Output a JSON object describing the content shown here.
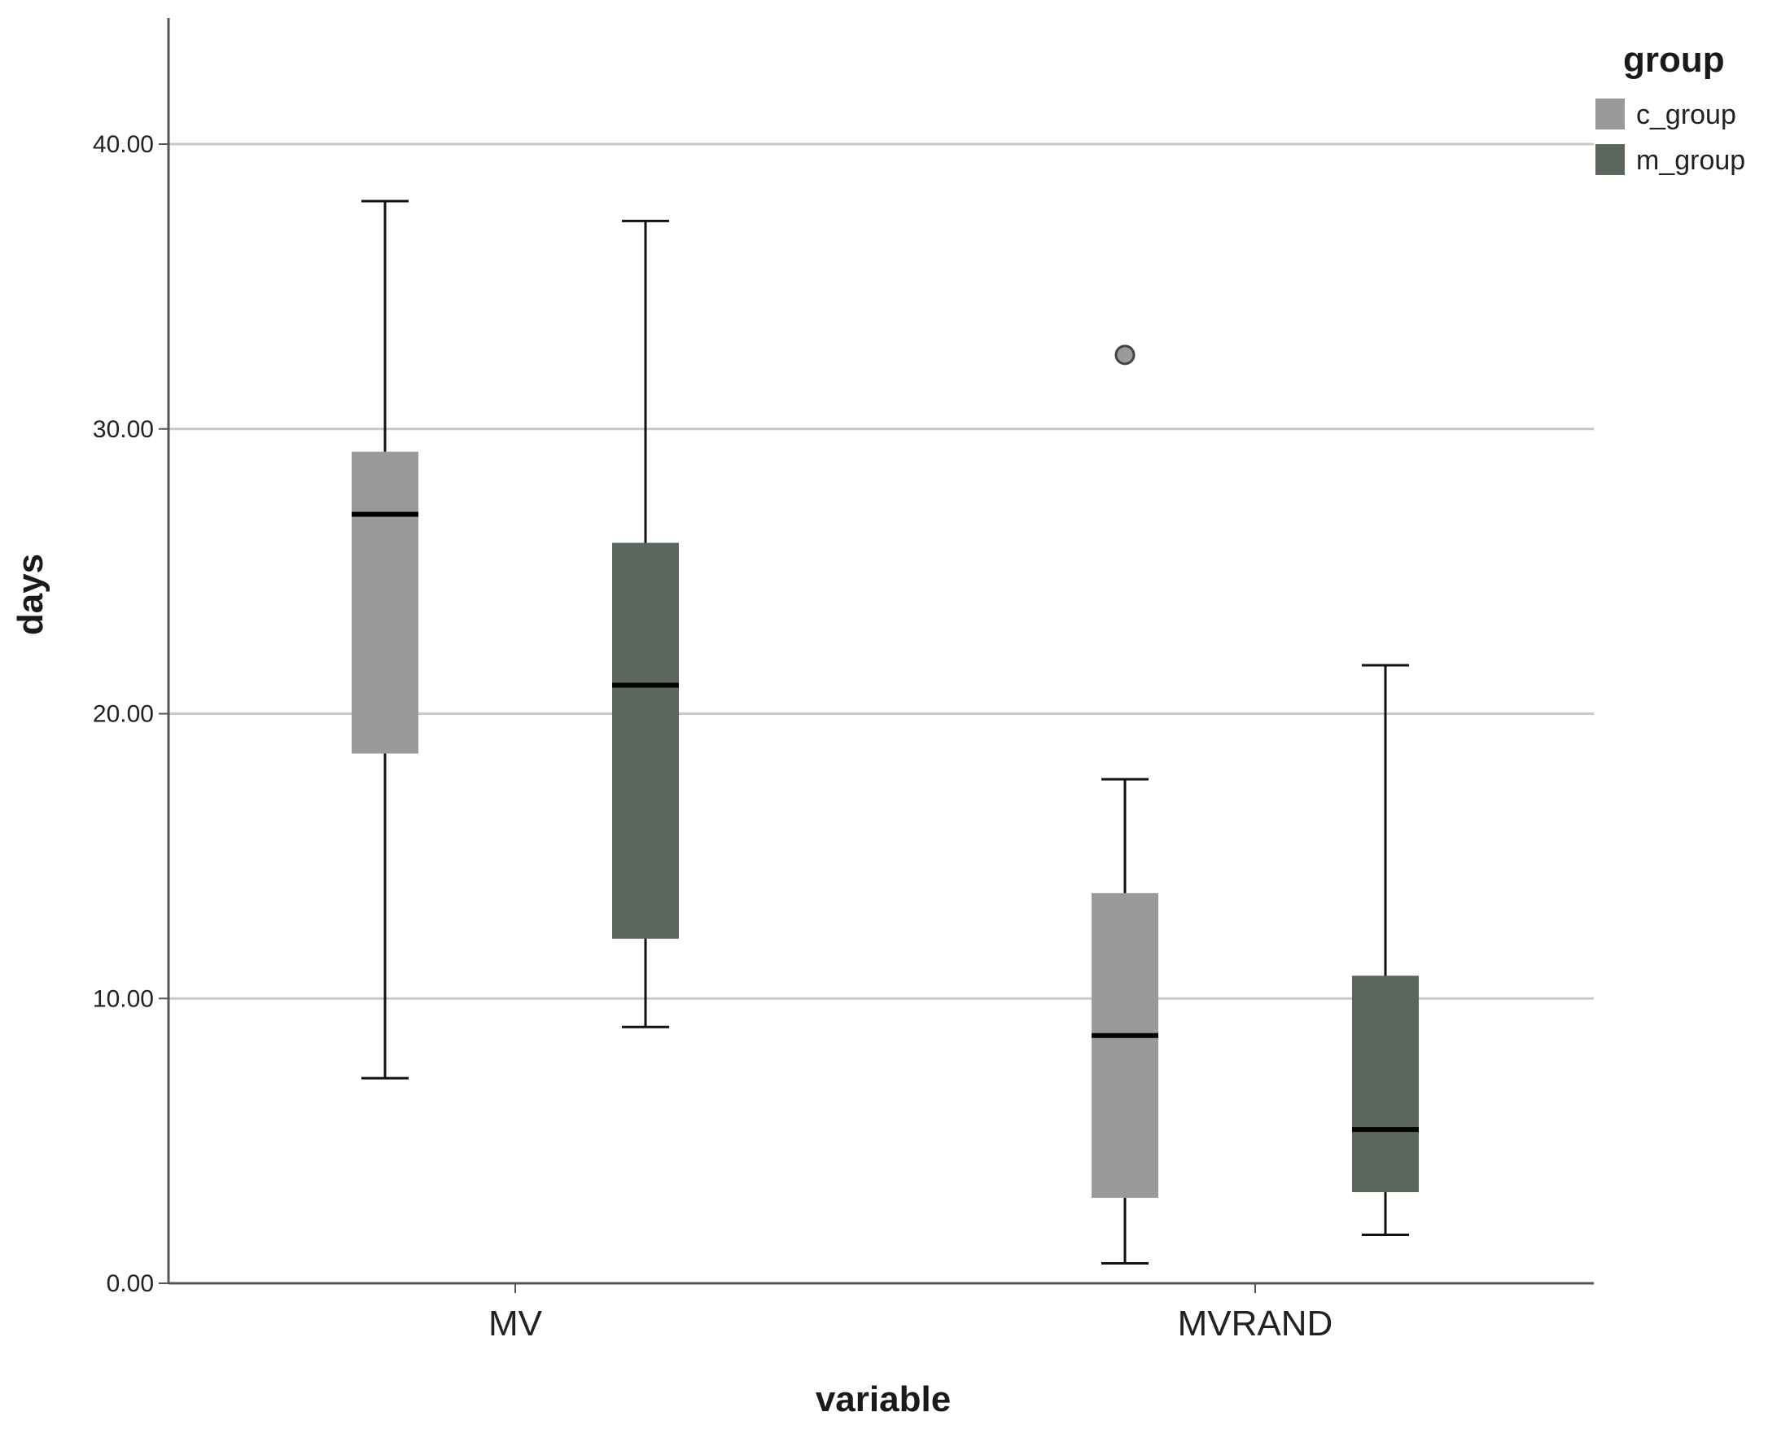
{
  "chart_data": {
    "type": "box",
    "xlabel": "variable",
    "ylabel": "days",
    "categories": [
      "MV",
      "MVRAND"
    ],
    "ylim": [
      0,
      44
    ],
    "yticks": [
      0,
      10,
      20,
      30,
      40
    ],
    "ytick_labels": [
      "0.00",
      "10.00",
      "20.00",
      "30.00",
      "40.00"
    ],
    "grid": "horizontal",
    "legend": {
      "title": "group",
      "position": "top-right"
    },
    "series": [
      {
        "name": "c_group",
        "color": "#9a9a9a",
        "boxes": [
          {
            "category": "MV",
            "min": 7.2,
            "q1": 18.6,
            "median": 27.0,
            "q3": 29.2,
            "max": 38.0,
            "outliers": []
          },
          {
            "category": "MVRAND",
            "min": 0.7,
            "q1": 3.0,
            "median": 8.7,
            "q3": 13.7,
            "max": 17.7,
            "outliers": [
              32.6
            ]
          }
        ]
      },
      {
        "name": "m_group",
        "color": "#5b665d",
        "boxes": [
          {
            "category": "MV",
            "min": 9.0,
            "q1": 12.1,
            "median": 21.0,
            "q3": 26.0,
            "max": 37.3,
            "outliers": []
          },
          {
            "category": "MVRAND",
            "min": 1.7,
            "q1": 3.2,
            "median": 5.4,
            "q3": 10.8,
            "max": 21.7,
            "outliers": []
          }
        ]
      }
    ]
  }
}
